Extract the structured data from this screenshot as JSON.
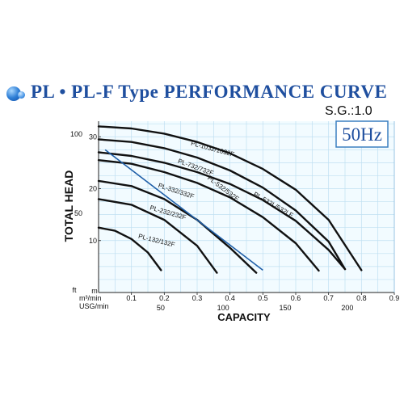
{
  "title": "PL • PL-F Type  PERFORMANCE CURVE",
  "specific_gravity": "S.G.:1.0",
  "frequency": "50Hz",
  "colors": {
    "title": "#1f4f9f",
    "grid": "#bfe0f2",
    "plot_bg": "#f2fbff",
    "curve": "#111111",
    "system_line": "#1f5fa8",
    "frequency_box_border": "#3a7fc1"
  },
  "chart_data": {
    "type": "line",
    "title": "",
    "xlabel": "CAPACITY",
    "ylabel": "TOTAL HEAD",
    "xlim": [
      0,
      0.9
    ],
    "ylim": [
      0,
      33
    ],
    "grid": true,
    "x_axis_unit_labels": [
      "m³/min",
      "USG/min"
    ],
    "y_axis_unit_labels": [
      "ft",
      "m"
    ],
    "x_ticks_m3min": [
      {
        "value": 0.1,
        "label": "0.1"
      },
      {
        "value": 0.2,
        "label": "0.2"
      },
      {
        "value": 0.3,
        "label": "0.3"
      },
      {
        "value": 0.4,
        "label": "0.4"
      },
      {
        "value": 0.5,
        "label": "0.5"
      },
      {
        "value": 0.6,
        "label": "0.6"
      },
      {
        "value": 0.7,
        "label": "0.7"
      },
      {
        "value": 0.8,
        "label": "0.8"
      },
      {
        "value": 0.9,
        "label": "0.9"
      }
    ],
    "x_ticks_usg": [
      {
        "value": 0.189,
        "label": "50"
      },
      {
        "value": 0.379,
        "label": "100"
      },
      {
        "value": 0.568,
        "label": "150"
      },
      {
        "value": 0.757,
        "label": "200"
      }
    ],
    "y_ticks_m": [
      {
        "value": 10,
        "label": "10"
      },
      {
        "value": 20,
        "label": "20"
      },
      {
        "value": 30,
        "label": "30"
      }
    ],
    "y_ticks_ft": [
      {
        "value": 15.24,
        "label": "50"
      },
      {
        "value": 30.48,
        "label": "100"
      }
    ],
    "series": [
      {
        "name": "PL-132/132F",
        "label_at": [
          0.12,
          10.5
        ],
        "label_angle": 14,
        "x": [
          0.0,
          0.05,
          0.1,
          0.15,
          0.19
        ],
        "y": [
          12.5,
          11.9,
          10.3,
          7.7,
          4.3
        ]
      },
      {
        "name": "PL-232/232F",
        "label_at": [
          0.155,
          16.0
        ],
        "label_angle": 16,
        "x": [
          0.0,
          0.1,
          0.2,
          0.3,
          0.36
        ],
        "y": [
          18.0,
          16.9,
          14.0,
          9.0,
          3.8
        ]
      },
      {
        "name": "PL-332/332F",
        "label_at": [
          0.18,
          20.3
        ],
        "label_angle": 18,
        "x": [
          0.0,
          0.1,
          0.2,
          0.3,
          0.4,
          0.48
        ],
        "y": [
          21.5,
          20.5,
          18.0,
          14.0,
          8.6,
          3.8
        ]
      },
      {
        "name": "PL-532/532F",
        "label_at": [
          0.33,
          21.9
        ],
        "label_angle": 37,
        "x": [
          0.0,
          0.1,
          0.2,
          0.3,
          0.4,
          0.5,
          0.6,
          0.67
        ],
        "y": [
          25.5,
          24.8,
          23.2,
          21.1,
          18.3,
          14.5,
          9.5,
          4.2
        ]
      },
      {
        "name": "PL-532L/532LF",
        "label_at": [
          0.47,
          18.7
        ],
        "label_angle": 30,
        "x": [
          0.0,
          0.1,
          0.2,
          0.3,
          0.4,
          0.5,
          0.6,
          0.7,
          0.75
        ],
        "y": [
          27.0,
          26.3,
          25.0,
          23.2,
          20.9,
          17.8,
          13.8,
          8.2,
          4.5
        ]
      },
      {
        "name": "PL-732/732F",
        "label_at": [
          0.24,
          25.0
        ],
        "label_angle": 20,
        "x": [
          0.0,
          0.1,
          0.2,
          0.3,
          0.4,
          0.5,
          0.6,
          0.7,
          0.75
        ],
        "y": [
          29.5,
          29.0,
          27.8,
          26.0,
          23.5,
          20.2,
          15.8,
          9.8,
          4.5
        ]
      },
      {
        "name": "PL-1032/1032F",
        "label_at": [
          0.28,
          28.4
        ],
        "label_angle": 15,
        "x": [
          0.0,
          0.1,
          0.2,
          0.3,
          0.4,
          0.5,
          0.6,
          0.7,
          0.8
        ],
        "y": [
          32.0,
          31.6,
          30.6,
          29.0,
          26.8,
          23.8,
          19.8,
          14.0,
          4.3
        ]
      }
    ],
    "reference_line": {
      "x": [
        0.02,
        0.5
      ],
      "y": [
        27.5,
        4.3
      ]
    }
  }
}
